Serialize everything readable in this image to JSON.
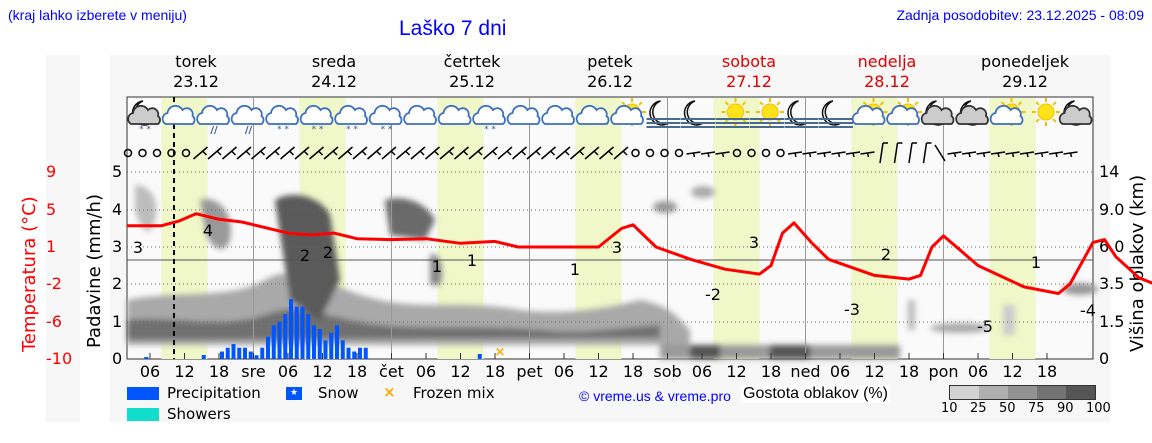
{
  "header": {
    "note": "(kraj lahko izberete v meniju)",
    "title": "Laško 7 dni",
    "last_update": "Zadnja posodobitev: 23.12.2025 - 08:09"
  },
  "days": [
    {
      "name": "torek",
      "date": "23.12",
      "weekend": false
    },
    {
      "name": "sreda",
      "date": "24.12",
      "weekend": false
    },
    {
      "name": "četrtek",
      "date": "25.12",
      "weekend": false
    },
    {
      "name": "petek",
      "date": "26.12",
      "weekend": false
    },
    {
      "name": "sobota",
      "date": "27.12",
      "weekend": true
    },
    {
      "name": "nedelja",
      "date": "28.12",
      "weekend": true
    },
    {
      "name": "ponedeljek",
      "date": "29.12",
      "weekend": false
    }
  ],
  "x_ticks": [
    "06",
    "12",
    "18",
    "sre",
    "06",
    "12",
    "18",
    "čet",
    "06",
    "12",
    "18",
    "pet",
    "06",
    "12",
    "18",
    "sob",
    "06",
    "12",
    "18",
    "ned",
    "06",
    "12",
    "18",
    "pon",
    "06",
    "12",
    "18"
  ],
  "axes": {
    "left_temp_label": "Temperatura (°C)",
    "left_temp_ticks": [
      "9",
      "5",
      "1",
      "-2",
      "-6",
      "-10"
    ],
    "left_precip_label": "Padavine (mm/h)",
    "left_precip_ticks": [
      "5",
      "4",
      "3",
      "2",
      "1",
      "0"
    ],
    "right_label": "Višina oblakov (km)",
    "right_ticks": [
      "14",
      "9.0",
      "6.0",
      "3.5",
      "1.5",
      "0"
    ]
  },
  "legend": {
    "precipitation": "Precipitation",
    "snow": "Snow",
    "frozen_mix": "Frozen mix",
    "showers": "Showers",
    "precip_color": "#0055ff",
    "showers_color": "#11ddcc",
    "frozen_color": "#ffaa00"
  },
  "credit": "© vreme.us & vreme.pro",
  "cloud_cover": {
    "title": "Gostota oblakov (%)",
    "labels": [
      "10",
      "25",
      "50",
      "75",
      "90",
      "100"
    ],
    "colors": [
      "#d3d3d3",
      "#b0b0b0",
      "#929292",
      "#737373",
      "#555555"
    ]
  },
  "weather_icons": [
    "night-partly-cloudy-snow",
    "cloudy",
    "cloudy-rain",
    "cloudy-rain",
    "cloudy-sleet",
    "cloudy-snow",
    "cloudy-snow",
    "cloudy-snow",
    "cloudy",
    "cloudy",
    "cloudy-snow",
    "cloudy",
    "cloudy",
    "cloudy",
    "sun-cloud",
    "night-fog",
    "night-fog",
    "sun-fog",
    "sun-fog",
    "night-fog",
    "night-fog",
    "sun-cloud",
    "sun-cloud",
    "night-cloud",
    "night-cloud",
    "sun-small-cloud",
    "sun",
    "night-cloud"
  ],
  "chart_data": {
    "type": "line",
    "title": "Laško 7 dni",
    "xlabel": "",
    "ylabel": "Temperatura (°C) / Padavine (mm/h)",
    "y2label": "Višina oblakov (km)",
    "temperature_series": {
      "name": "Temperatura (°C)",
      "color": "#ff0000",
      "points": [
        {
          "x": "23.12 02h",
          "y": 3
        },
        {
          "x": "23.12 08h",
          "y": 3
        },
        {
          "x": "23.12 13h",
          "y": 4
        },
        {
          "x": "23.12 18h",
          "y": 3.5
        },
        {
          "x": "24.12 06h",
          "y": 2
        },
        {
          "x": "24.12 12h",
          "y": 2
        },
        {
          "x": "24.12 18h",
          "y": 1.5
        },
        {
          "x": "25.12 00h",
          "y": 1.5
        },
        {
          "x": "25.12 06h",
          "y": 1
        },
        {
          "x": "25.12 12h",
          "y": 1
        },
        {
          "x": "25.12 18h",
          "y": 0.5
        },
        {
          "x": "26.12 06h",
          "y": 0.5
        },
        {
          "x": "26.12 12h",
          "y": 3
        },
        {
          "x": "26.12 18h",
          "y": 0
        },
        {
          "x": "27.12 06h",
          "y": -2
        },
        {
          "x": "27.12 12h",
          "y": 3
        },
        {
          "x": "27.12 18h",
          "y": -1
        },
        {
          "x": "28.12 06h",
          "y": -3
        },
        {
          "x": "28.12 12h",
          "y": 2
        },
        {
          "x": "28.12 18h",
          "y": -1.5
        },
        {
          "x": "29.12 06h",
          "y": -5
        },
        {
          "x": "29.12 12h",
          "y": 1
        },
        {
          "x": "29.12 18h",
          "y": -3
        },
        {
          "x": "30.12 00h",
          "y": -4
        }
      ],
      "labels": [
        "3",
        "4",
        "2",
        "2",
        "1",
        "1",
        "1",
        "3",
        "-2",
        "3",
        "-3",
        "2",
        "-5",
        "1",
        "-4"
      ]
    },
    "precipitation_series": {
      "name": "Precipitation",
      "unit": "mm/h",
      "color": "#0055ff",
      "note": "light precipitation 23.12 evening through 24.12, peak about 1.6 mm/h around 24.12 10h",
      "values_hourly_24_12": [
        0.2,
        0.3,
        0.4,
        0.3,
        0.3,
        0.2,
        0.1,
        0.3,
        0.6,
        0.9,
        1.0,
        1.2,
        1.6,
        1.4,
        1.4,
        1.2,
        0.9,
        0.8,
        0.5,
        0.7,
        0.9,
        0.5,
        0.3,
        0.2,
        0.3,
        0.3
      ]
    },
    "frozen_mix": [
      {
        "x": "25.12 17h",
        "y": 0.1
      }
    ],
    "left_ylim_precip": [
      0,
      5
    ],
    "left_ylim_temp": [
      -10,
      9
    ],
    "right_ylim_cloud_km": [
      0,
      14
    ],
    "cloud_height_ticks_km": [
      0,
      1.5,
      3.5,
      6.0,
      9.0,
      14
    ],
    "grid": true,
    "legend_position": "bottom"
  }
}
